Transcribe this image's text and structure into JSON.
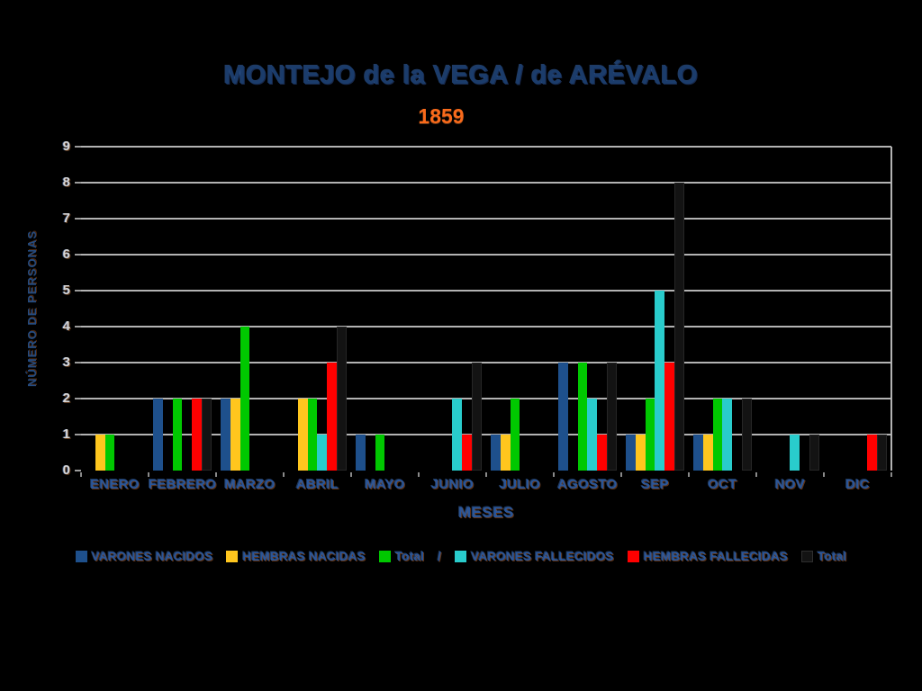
{
  "chart_data": {
    "type": "bar",
    "title": "MONTEJO de la VEGA / de ARÉVALO",
    "subtitle": "1859",
    "xlabel": "MESES",
    "ylabel": "NÚMERO DE PERSONAS",
    "ylim": [
      0,
      9
    ],
    "yticks": [
      0,
      1,
      2,
      3,
      4,
      5,
      6,
      7,
      8,
      9
    ],
    "grid": "horizontal",
    "legend_position": "bottom",
    "legend_separator": "/",
    "background_color": "#000000",
    "gridline_color": "#B3B3B3",
    "categories": [
      "ENERO",
      "FEBRERO",
      "MARZO",
      "ABRIL",
      "MAYO",
      "JUNIO",
      "JULIO",
      "AGOSTO",
      "SEP",
      "OCT",
      "NOV",
      "DIC"
    ],
    "series": [
      {
        "name": "VARONES NACIDOS",
        "color": "#1E508C",
        "values": [
          0,
          2,
          2,
          0,
          1,
          0,
          1,
          3,
          1,
          1,
          0,
          0
        ]
      },
      {
        "name": "HEMBRAS NACIDAS",
        "color": "#FFC61E",
        "values": [
          1,
          0,
          2,
          2,
          0,
          0,
          1,
          0,
          1,
          1,
          0,
          0
        ]
      },
      {
        "name": "Total",
        "color": "#00C800",
        "values": [
          1,
          2,
          4,
          2,
          1,
          0,
          2,
          3,
          2,
          2,
          0,
          0
        ]
      },
      {
        "name": "VARONES FALLECIDOS",
        "color": "#29CCCC",
        "values": [
          0,
          0,
          0,
          1,
          0,
          2,
          0,
          2,
          5,
          2,
          1,
          0
        ]
      },
      {
        "name": "HEMBRAS FALLECIDAS",
        "color": "#FF0000",
        "values": [
          0,
          2,
          0,
          3,
          0,
          1,
          0,
          1,
          3,
          0,
          0,
          1
        ]
      },
      {
        "name": "Total",
        "color": "#131313",
        "border": "#262626",
        "values": [
          0,
          2,
          0,
          4,
          0,
          3,
          0,
          3,
          8,
          2,
          1,
          1
        ]
      }
    ]
  }
}
